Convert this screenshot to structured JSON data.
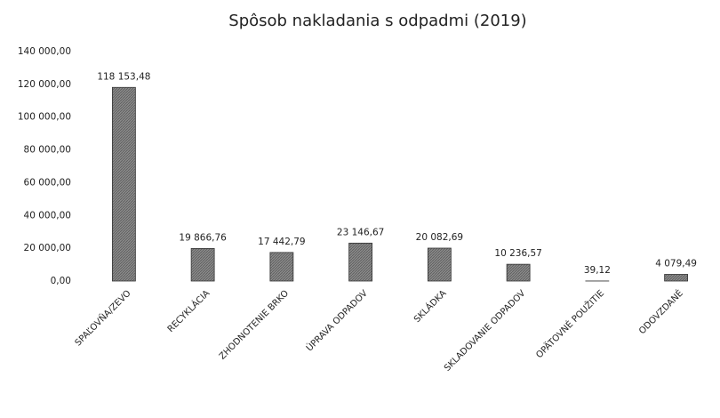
{
  "chart_data": {
    "type": "bar",
    "title": "Spôsob nakladania s odpadmi (2019)",
    "categories": [
      "SPAĽOVŇA/ZEVO",
      "RECYKLÁCIA",
      "ZHODNOTENIE BRKO",
      "ÚPRAVA ODPADOV",
      "SKLÁDKA",
      "SKLADOVANIE ODPADOV",
      "OPÄTOVNÉ POUŽITIE",
      "ODOVZDANÉ"
    ],
    "values": [
      118153.48,
      19866.76,
      17442.79,
      23146.67,
      20082.69,
      10236.57,
      39.12,
      4079.49
    ],
    "value_labels": [
      "118 153,48",
      "19 866,76",
      "17 442,79",
      "23 146,67",
      "20 082,69",
      "10 236,57",
      "39,12",
      "4 079,49"
    ],
    "color": "#7a7a7a",
    "ylim": [
      0,
      140000
    ],
    "yticks": [
      {
        "value": 0,
        "label": "0,00"
      },
      {
        "value": 20000,
        "label": "20 000,00"
      },
      {
        "value": 40000,
        "label": "40 000,00"
      },
      {
        "value": 60000,
        "label": "60 000,00"
      },
      {
        "value": 80000,
        "label": "80 000,00"
      },
      {
        "value": 100000,
        "label": "100 000,00"
      },
      {
        "value": 120000,
        "label": "120 000,00"
      },
      {
        "value": 140000,
        "label": "140 000,00"
      }
    ],
    "grid": false
  }
}
